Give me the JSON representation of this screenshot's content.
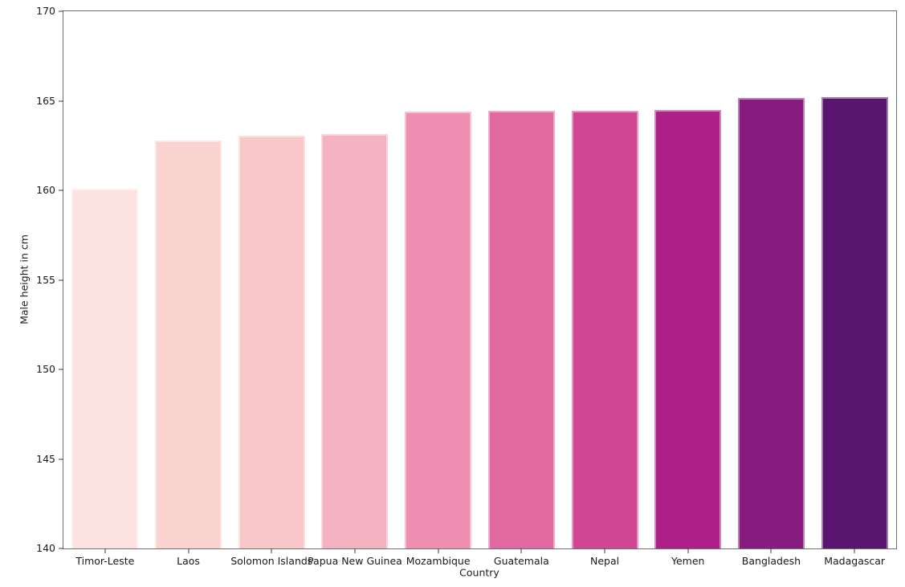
{
  "chart_data": {
    "type": "bar",
    "title": "",
    "xlabel": "Country",
    "ylabel": "Male height in cm",
    "categories": [
      "Timor-Leste",
      "Laos",
      "Solomon Islands",
      "Papua New Guinea",
      "Mozambique",
      "Guatemala",
      "Nepal",
      "Yemen",
      "Bangladesh",
      "Madagascar"
    ],
    "values": [
      160.1,
      162.8,
      163.05,
      163.15,
      164.4,
      164.45,
      164.45,
      164.5,
      165.15,
      165.2
    ],
    "bar_colors": [
      "#fce3e1",
      "#fad2d0",
      "#f8c7c9",
      "#f3b2bf",
      "#ee8fb2",
      "#e2699f",
      "#d04693",
      "#ae2088",
      "#871b80",
      "#5a1570"
    ],
    "ylim": [
      140,
      170
    ],
    "yticks": [
      140,
      145,
      150,
      155,
      160,
      165,
      170
    ],
    "bar_width_fraction": 0.8,
    "grid": false,
    "legend": null
  },
  "colors": {
    "background": "#ffffff",
    "spine": "#707070",
    "tick": "#3a3a3a",
    "text": "#1a1a1a",
    "bar_edge": "rgba(255,255,255,0.45)"
  }
}
